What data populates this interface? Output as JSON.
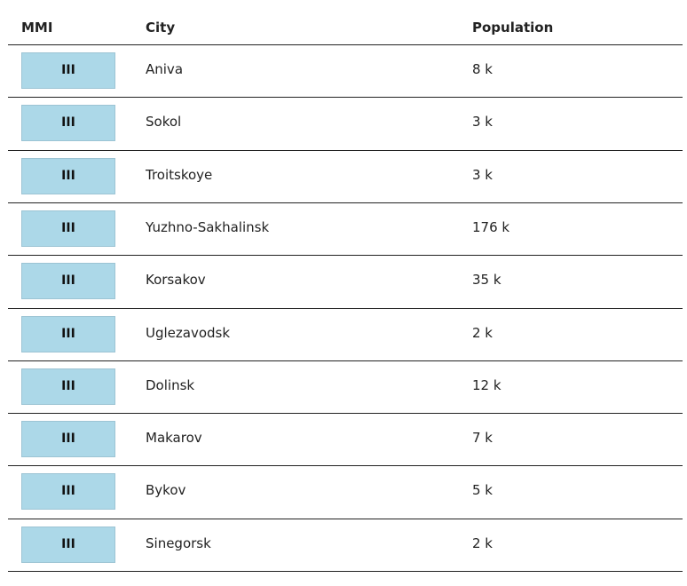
{
  "table": {
    "headers": [
      "MMI",
      "City",
      "Population"
    ],
    "rows": [
      [
        "III",
        "Aniva",
        "8 k"
      ],
      [
        "III",
        "Sokol",
        "3 k"
      ],
      [
        "III",
        "Troitskoye",
        "3 k"
      ],
      [
        "III",
        "Yuzhno-Sakhalinsk",
        "176 k"
      ],
      [
        "III",
        "Korsakov",
        "35 k"
      ],
      [
        "III",
        "Uglezavodsk",
        "2 k"
      ],
      [
        "III",
        "Dolinsk",
        "12 k"
      ],
      [
        "III",
        "Makarov",
        "7 k"
      ],
      [
        "III",
        "Bykov",
        "5 k"
      ],
      [
        "III",
        "Sinegorsk",
        "2 k"
      ]
    ]
  }
}
